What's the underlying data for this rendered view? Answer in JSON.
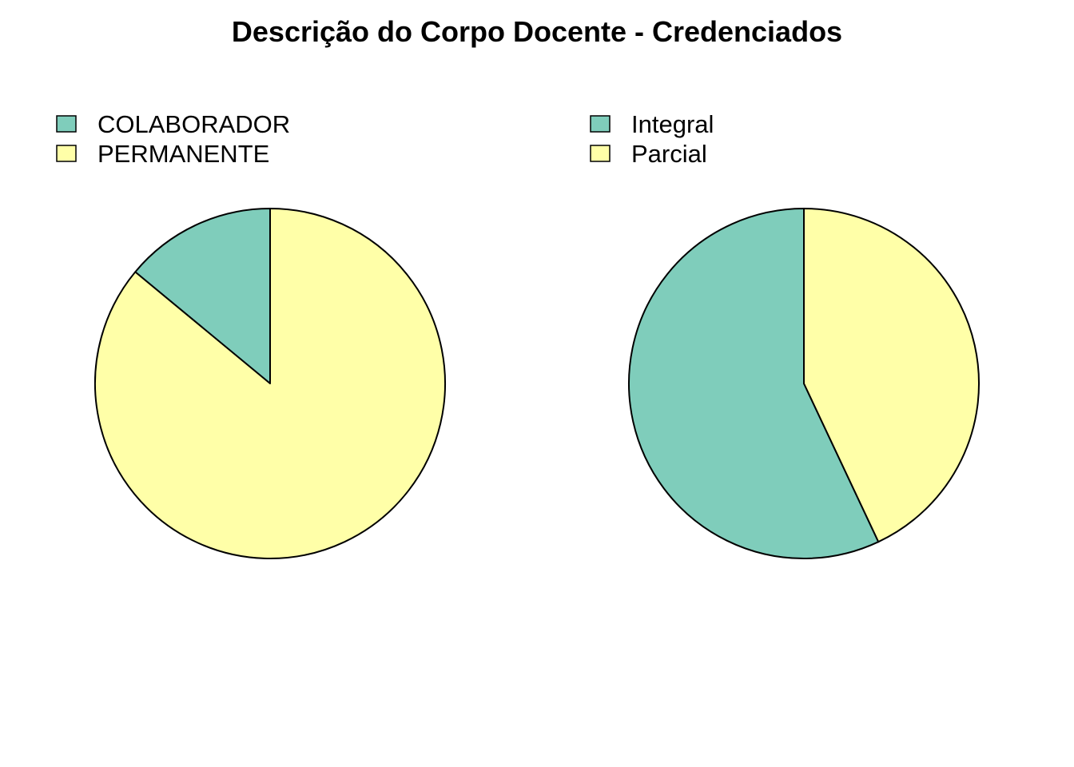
{
  "title": "Descrição do Corpo Docente - Credenciados",
  "chart_data": [
    {
      "type": "pie",
      "title": "",
      "labels": [
        "COLABORADOR",
        "PERMANENTE"
      ],
      "values": [
        14,
        86
      ],
      "unit": "percent",
      "colors": [
        "#7FCDBB",
        "#FFFFA8"
      ],
      "start_angle_deg": 90,
      "direction": "counterclockwise",
      "legend": "top-left"
    },
    {
      "type": "pie",
      "title": "",
      "labels": [
        "Integral",
        "Parcial"
      ],
      "values": [
        57,
        43
      ],
      "unit": "percent",
      "colors": [
        "#7FCDBB",
        "#FFFFA8"
      ],
      "start_angle_deg": 90,
      "direction": "counterclockwise",
      "legend": "top-left"
    }
  ]
}
